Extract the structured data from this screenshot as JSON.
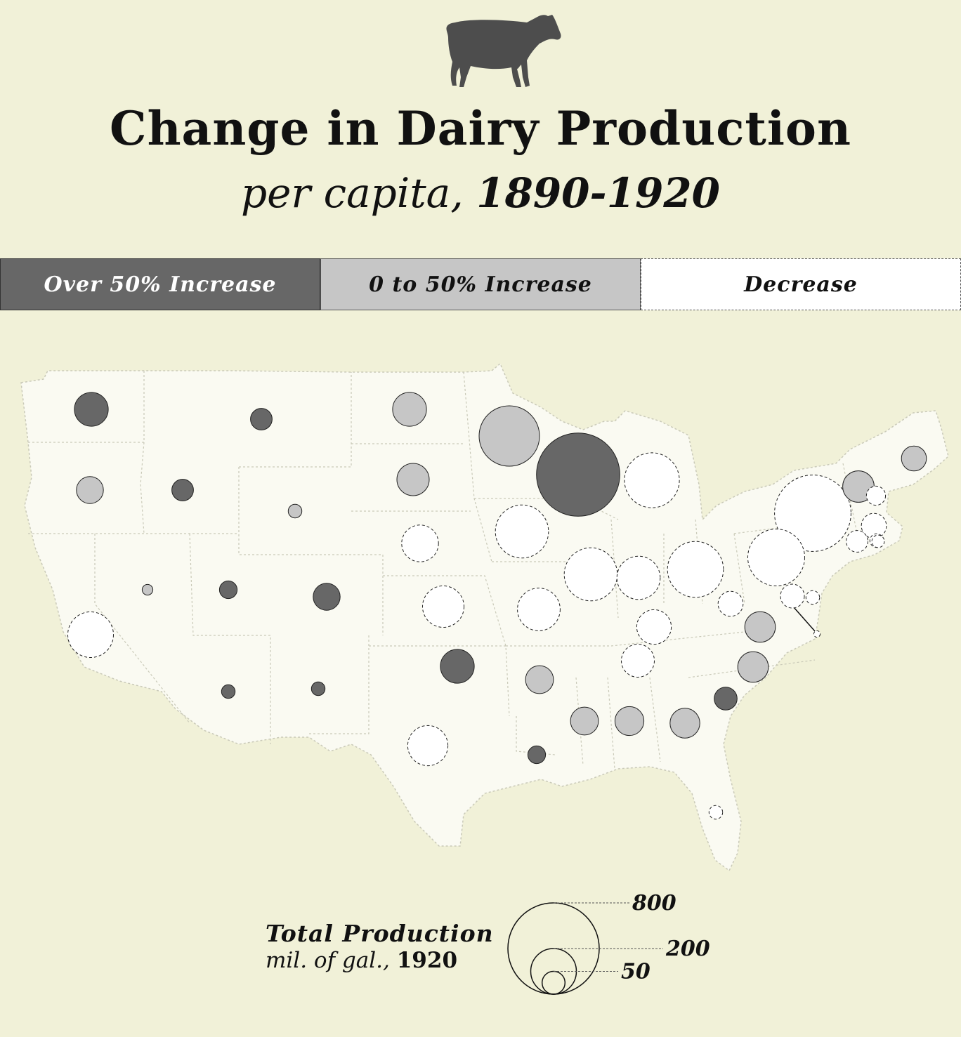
{
  "header": {
    "icon": "cow-icon",
    "title": "Change in Dairy Production",
    "subtitle_prefix": "per capita,",
    "subtitle_years": "1890-1920"
  },
  "color_legend": [
    {
      "label": "Over 50% Increase",
      "category": "high",
      "color": "#676767"
    },
    {
      "label": "0 to 50% Increase",
      "category": "mid",
      "color": "#c6c6c6"
    },
    {
      "label": "Decrease",
      "category": "low",
      "color": "#ffffff"
    }
  ],
  "size_legend": {
    "title": "Total Production",
    "unit": "mil. of gal.,",
    "year": "1920",
    "references": [
      {
        "value": 800,
        "label": "800"
      },
      {
        "value": 200,
        "label": "200"
      },
      {
        "value": 50,
        "label": "50"
      }
    ]
  },
  "chart_data": {
    "type": "proportional-symbol-map",
    "title": "Change in Dairy Production",
    "subtitle": "per capita, 1890-1920",
    "size_variable": "Total Production, mil. of gal., 1920",
    "color_variable": "Change in dairy production per capita, 1890-1920",
    "states": [
      {
        "state": "WA",
        "production": 110,
        "change": "high"
      },
      {
        "state": "OR",
        "production": 70,
        "change": "mid"
      },
      {
        "state": "CA",
        "production": 200,
        "change": "low"
      },
      {
        "state": "ID",
        "production": 45,
        "change": "high"
      },
      {
        "state": "NV",
        "production": 11,
        "change": "mid"
      },
      {
        "state": "MT",
        "production": 45,
        "change": "high"
      },
      {
        "state": "WY",
        "production": 18,
        "change": "mid"
      },
      {
        "state": "UT",
        "production": 30,
        "change": "high"
      },
      {
        "state": "AZ",
        "production": 18,
        "change": "high"
      },
      {
        "state": "CO",
        "production": 70,
        "change": "high"
      },
      {
        "state": "NM",
        "production": 18,
        "change": "high"
      },
      {
        "state": "ND",
        "production": 110,
        "change": "mid"
      },
      {
        "state": "SD",
        "production": 100,
        "change": "mid"
      },
      {
        "state": "NE",
        "production": 130,
        "change": "low"
      },
      {
        "state": "KS",
        "production": 165,
        "change": "low"
      },
      {
        "state": "OK",
        "production": 110,
        "change": "high"
      },
      {
        "state": "TX",
        "production": 155,
        "change": "low"
      },
      {
        "state": "MN",
        "production": 350,
        "change": "mid"
      },
      {
        "state": "IA",
        "production": 270,
        "change": "low"
      },
      {
        "state": "MO",
        "production": 175,
        "change": "low"
      },
      {
        "state": "AR",
        "production": 75,
        "change": "mid"
      },
      {
        "state": "LA",
        "production": 30,
        "change": "high"
      },
      {
        "state": "WI",
        "production": 665,
        "change": "high"
      },
      {
        "state": "MI",
        "production": 290,
        "change": "low"
      },
      {
        "state": "IL",
        "production": 270,
        "change": "low"
      },
      {
        "state": "IN",
        "production": 180,
        "change": "low"
      },
      {
        "state": "OH",
        "production": 300,
        "change": "low"
      },
      {
        "state": "KY",
        "production": 115,
        "change": "low"
      },
      {
        "state": "TN",
        "production": 105,
        "change": "low"
      },
      {
        "state": "MS",
        "production": 75,
        "change": "mid"
      },
      {
        "state": "AL",
        "production": 80,
        "change": "mid"
      },
      {
        "state": "GA",
        "production": 85,
        "change": "mid"
      },
      {
        "state": "FL",
        "production": 18,
        "change": "low"
      },
      {
        "state": "SC",
        "production": 50,
        "change": "high"
      },
      {
        "state": "NC",
        "production": 90,
        "change": "mid"
      },
      {
        "state": "VA",
        "production": 90,
        "change": "mid"
      },
      {
        "state": "WV",
        "production": 60,
        "change": "low"
      },
      {
        "state": "MD",
        "production": 55,
        "change": "low"
      },
      {
        "state": "DE",
        "production": 18,
        "change": "low"
      },
      {
        "state": "DC",
        "production": 4,
        "change": "low"
      },
      {
        "state": "PA",
        "production": 310,
        "change": "low"
      },
      {
        "state": "NY",
        "production": 560,
        "change": "low"
      },
      {
        "state": "NJ",
        "production": 18,
        "change": "low"
      },
      {
        "state": "VT",
        "production": 95,
        "change": "mid"
      },
      {
        "state": "NH",
        "production": 35,
        "change": "low"
      },
      {
        "state": "MA",
        "production": 60,
        "change": "low"
      },
      {
        "state": "CT",
        "production": 45,
        "change": "low"
      },
      {
        "state": "RI",
        "production": 15,
        "change": "low"
      },
      {
        "state": "ME",
        "production": 60,
        "change": "mid"
      }
    ]
  }
}
